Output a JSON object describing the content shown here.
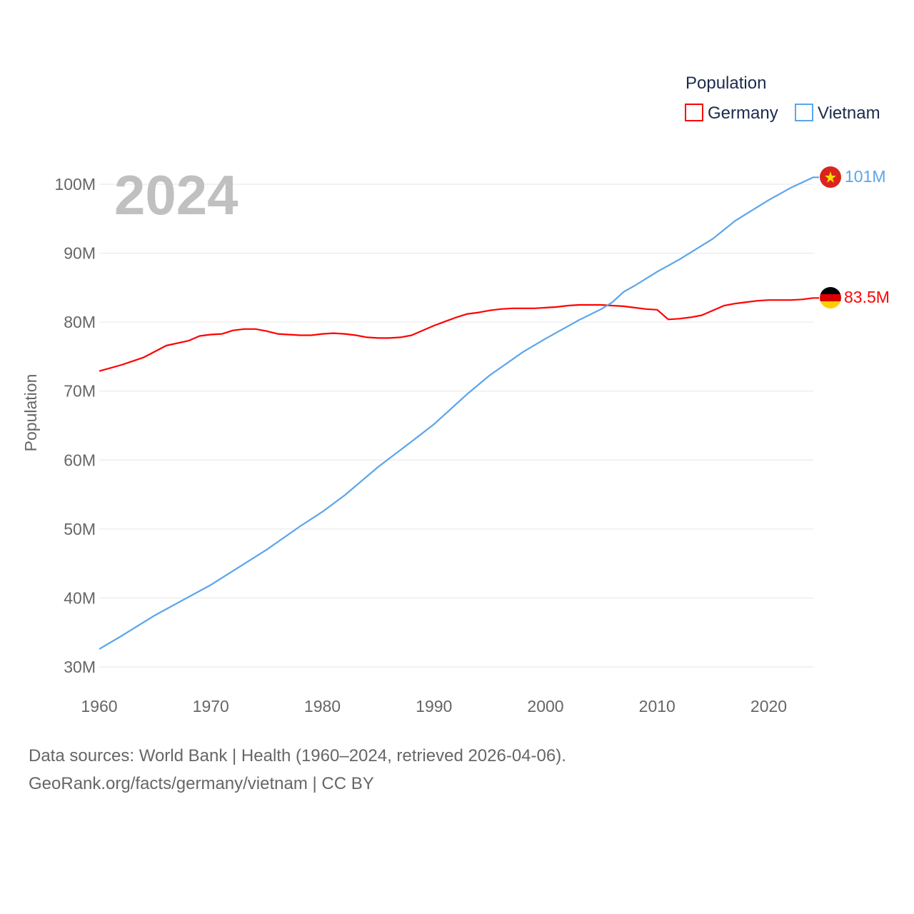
{
  "chart_data": {
    "type": "line",
    "ylabel": "Population",
    "year_label": "2024",
    "legend": {
      "title": "Population",
      "placement": "top-right"
    },
    "xlim": [
      1960,
      2024
    ],
    "ylim": [
      30,
      100
    ],
    "x_ticks": [
      "1960",
      "1970",
      "1980",
      "1990",
      "2000",
      "2010",
      "2020"
    ],
    "x_tick_values": [
      1960,
      1970,
      1980,
      1990,
      2000,
      2010,
      2020
    ],
    "y_ticks": [
      "30M",
      "40M",
      "50M",
      "60M",
      "70M",
      "80M",
      "90M",
      "100M"
    ],
    "y_tick_values": [
      30,
      40,
      50,
      60,
      70,
      80,
      90,
      100
    ],
    "series": [
      {
        "name": "Germany",
        "color": "#ff0000",
        "end_label": "83.5M",
        "flag": "germany-flag",
        "x": [
          1960,
          1962,
          1964,
          1966,
          1968,
          1969,
          1970,
          1971,
          1972,
          1973,
          1974,
          1975,
          1976,
          1978,
          1979,
          1980,
          1981,
          1982,
          1983,
          1984,
          1985,
          1986,
          1987,
          1988,
          1989,
          1990,
          1991,
          1992,
          1993,
          1994,
          1995,
          1996,
          1997,
          1998,
          1999,
          2000,
          2001,
          2002,
          2003,
          2004,
          2005,
          2006,
          2007,
          2008,
          2009,
          2010,
          2011,
          2012,
          2013,
          2014,
          2015,
          2016,
          2017,
          2018,
          2019,
          2020,
          2021,
          2022,
          2023,
          2024
        ],
        "y": [
          72.9,
          73.8,
          74.9,
          76.6,
          77.3,
          78.0,
          78.2,
          78.3,
          78.8,
          79.0,
          79.0,
          78.7,
          78.3,
          78.1,
          78.1,
          78.3,
          78.4,
          78.3,
          78.1,
          77.8,
          77.7,
          77.7,
          77.8,
          78.1,
          78.8,
          79.5,
          80.1,
          80.7,
          81.2,
          81.4,
          81.7,
          81.9,
          82.0,
          82.0,
          82.0,
          82.1,
          82.2,
          82.4,
          82.5,
          82.5,
          82.5,
          82.4,
          82.3,
          82.1,
          81.9,
          81.8,
          80.4,
          80.5,
          80.7,
          81.0,
          81.7,
          82.4,
          82.7,
          82.9,
          83.1,
          83.2,
          83.2,
          83.2,
          83.3,
          83.5
        ]
      },
      {
        "name": "Vietnam",
        "color": "#5aa5ec",
        "end_label": "101M",
        "flag": "vietnam-flag",
        "x": [
          1960,
          1962,
          1965,
          1970,
          1975,
          1978,
          1980,
          1982,
          1985,
          1988,
          1990,
          1993,
          1995,
          1998,
          2000,
          2003,
          2005,
          2006,
          2007,
          2008,
          2009,
          2010,
          2012,
          2015,
          2017,
          2020,
          2022,
          2024
        ],
        "y": [
          32.6,
          34.5,
          37.5,
          41.9,
          47.0,
          50.4,
          52.5,
          54.9,
          59.0,
          62.7,
          65.2,
          69.6,
          72.3,
          75.7,
          77.6,
          80.3,
          81.9,
          82.9,
          84.4,
          85.3,
          86.3,
          87.3,
          89.1,
          92.1,
          94.7,
          97.7,
          99.5,
          101.0
        ]
      }
    ]
  },
  "footer": {
    "line1": "Data sources: World Bank | Health (1960–2024, retrieved 2026-04-06).",
    "line2": "GeoRank.org/facts/germany/vietnam | CC BY"
  }
}
